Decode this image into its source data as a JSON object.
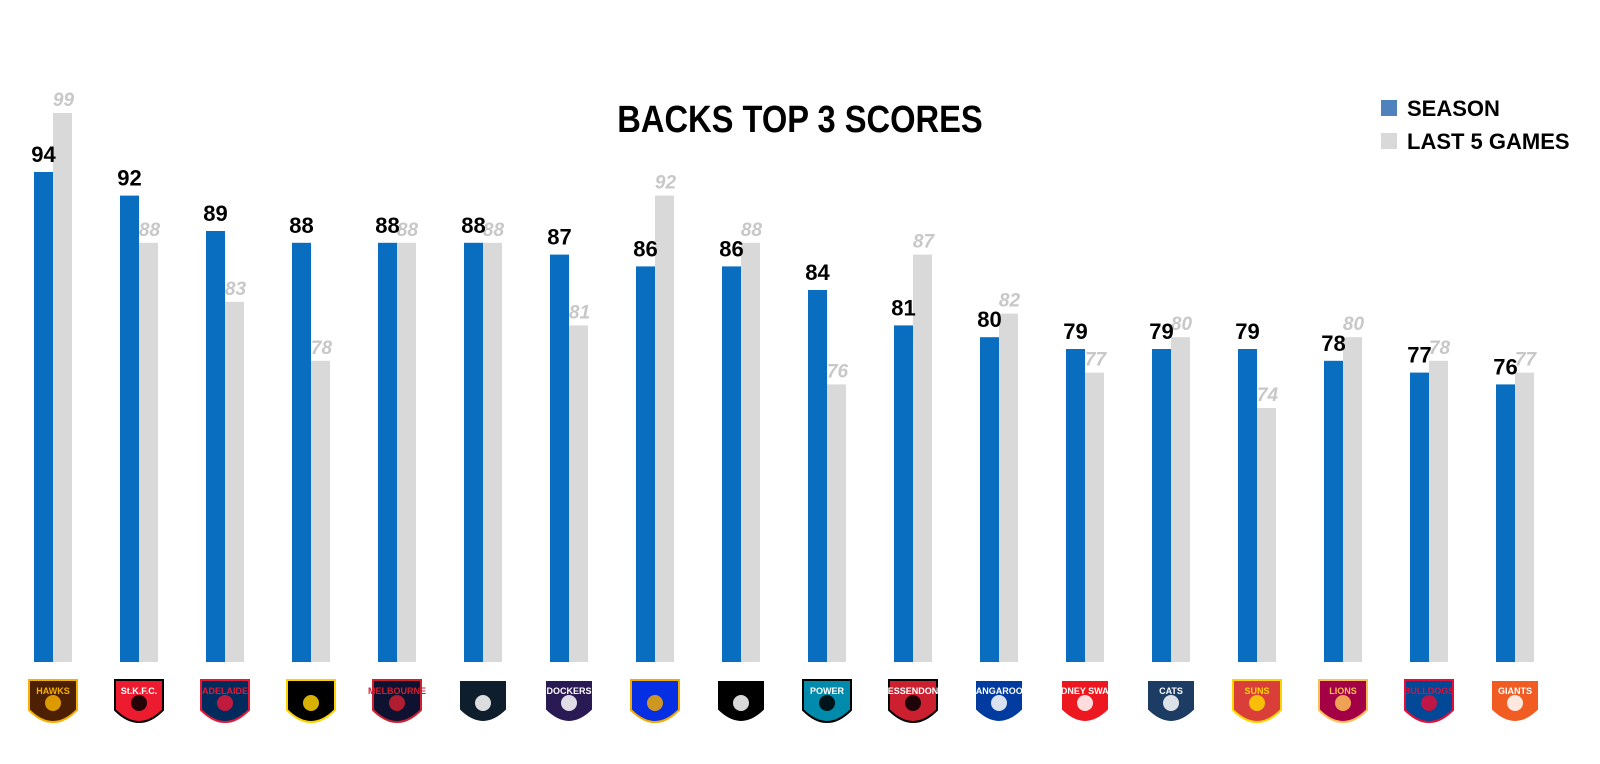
{
  "chart_data": {
    "type": "bar",
    "title": "BACKS TOP 3 SCORES",
    "legend_position": "top-right",
    "grid": false,
    "ylim": [
      50,
      100
    ],
    "categories": [
      "Hawks",
      "St K.F.C.",
      "Adelaide Crows",
      "Tigers",
      "Melbourne",
      "Carlton",
      "Fremantle Dockers",
      "Eagles",
      "Collingwood",
      "Power",
      "Essendon",
      "Kangaroos",
      "Sydney Swans",
      "Geelong Cats",
      "Suns",
      "Brisbane Lions",
      "Western Bulldogs",
      "Giants"
    ],
    "series": [
      {
        "name": "SEASON",
        "color": "#0a6ec0",
        "values": [
          94,
          92,
          89,
          88,
          88,
          88,
          87,
          86,
          86,
          84,
          81,
          80,
          79,
          79,
          79,
          78,
          77,
          76
        ]
      },
      {
        "name": "LAST 5 GAMES",
        "color": "#d9d9d9",
        "values": [
          99,
          88,
          83,
          78,
          88,
          88,
          81,
          92,
          88,
          76,
          87,
          82,
          77,
          80,
          74,
          80,
          78,
          77
        ]
      }
    ],
    "logos": [
      {
        "text": "HAWKS",
        "colors": [
          "#4d2004",
          "#f6b000"
        ]
      },
      {
        "text": "St.K.F.C.",
        "colors": [
          "#ed1b2f",
          "#000000"
        ]
      },
      {
        "text": "ADELAIDE",
        "colors": [
          "#002b5c",
          "#e21937"
        ]
      },
      {
        "text": "",
        "colors": [
          "#000000",
          "#fed102"
        ]
      },
      {
        "text": "MELBOURNE",
        "colors": [
          "#0f1131",
          "#cc2031"
        ]
      },
      {
        "text": "",
        "colors": [
          "#0e1e2d",
          "#ffffff"
        ]
      },
      {
        "text": "DOCKERS",
        "colors": [
          "#2a1a54",
          "#ffffff"
        ]
      },
      {
        "text": "",
        "colors": [
          "#062ee2",
          "#f2a900"
        ]
      },
      {
        "text": "",
        "colors": [
          "#000000",
          "#ffffff"
        ]
      },
      {
        "text": "POWER",
        "colors": [
          "#008aab",
          "#000000"
        ]
      },
      {
        "text": "ESSENDON",
        "colors": [
          "#cc2031",
          "#000000"
        ]
      },
      {
        "text": "KANGAROOS",
        "colors": [
          "#013b9f",
          "#ffffff"
        ]
      },
      {
        "text": "SYDNEY SWANS",
        "colors": [
          "#ed171f",
          "#ffffff"
        ]
      },
      {
        "text": "CATS",
        "colors": [
          "#1c3c63",
          "#ffffff"
        ]
      },
      {
        "text": "SUNS",
        "colors": [
          "#d93e39",
          "#fdd600"
        ]
      },
      {
        "text": "LIONS",
        "colors": [
          "#a30046",
          "#fdbe57"
        ]
      },
      {
        "text": "BULLDOGS",
        "colors": [
          "#014896",
          "#e20e37"
        ]
      },
      {
        "text": "GIANTS",
        "colors": [
          "#f15c22",
          "#ffffff"
        ]
      }
    ]
  }
}
